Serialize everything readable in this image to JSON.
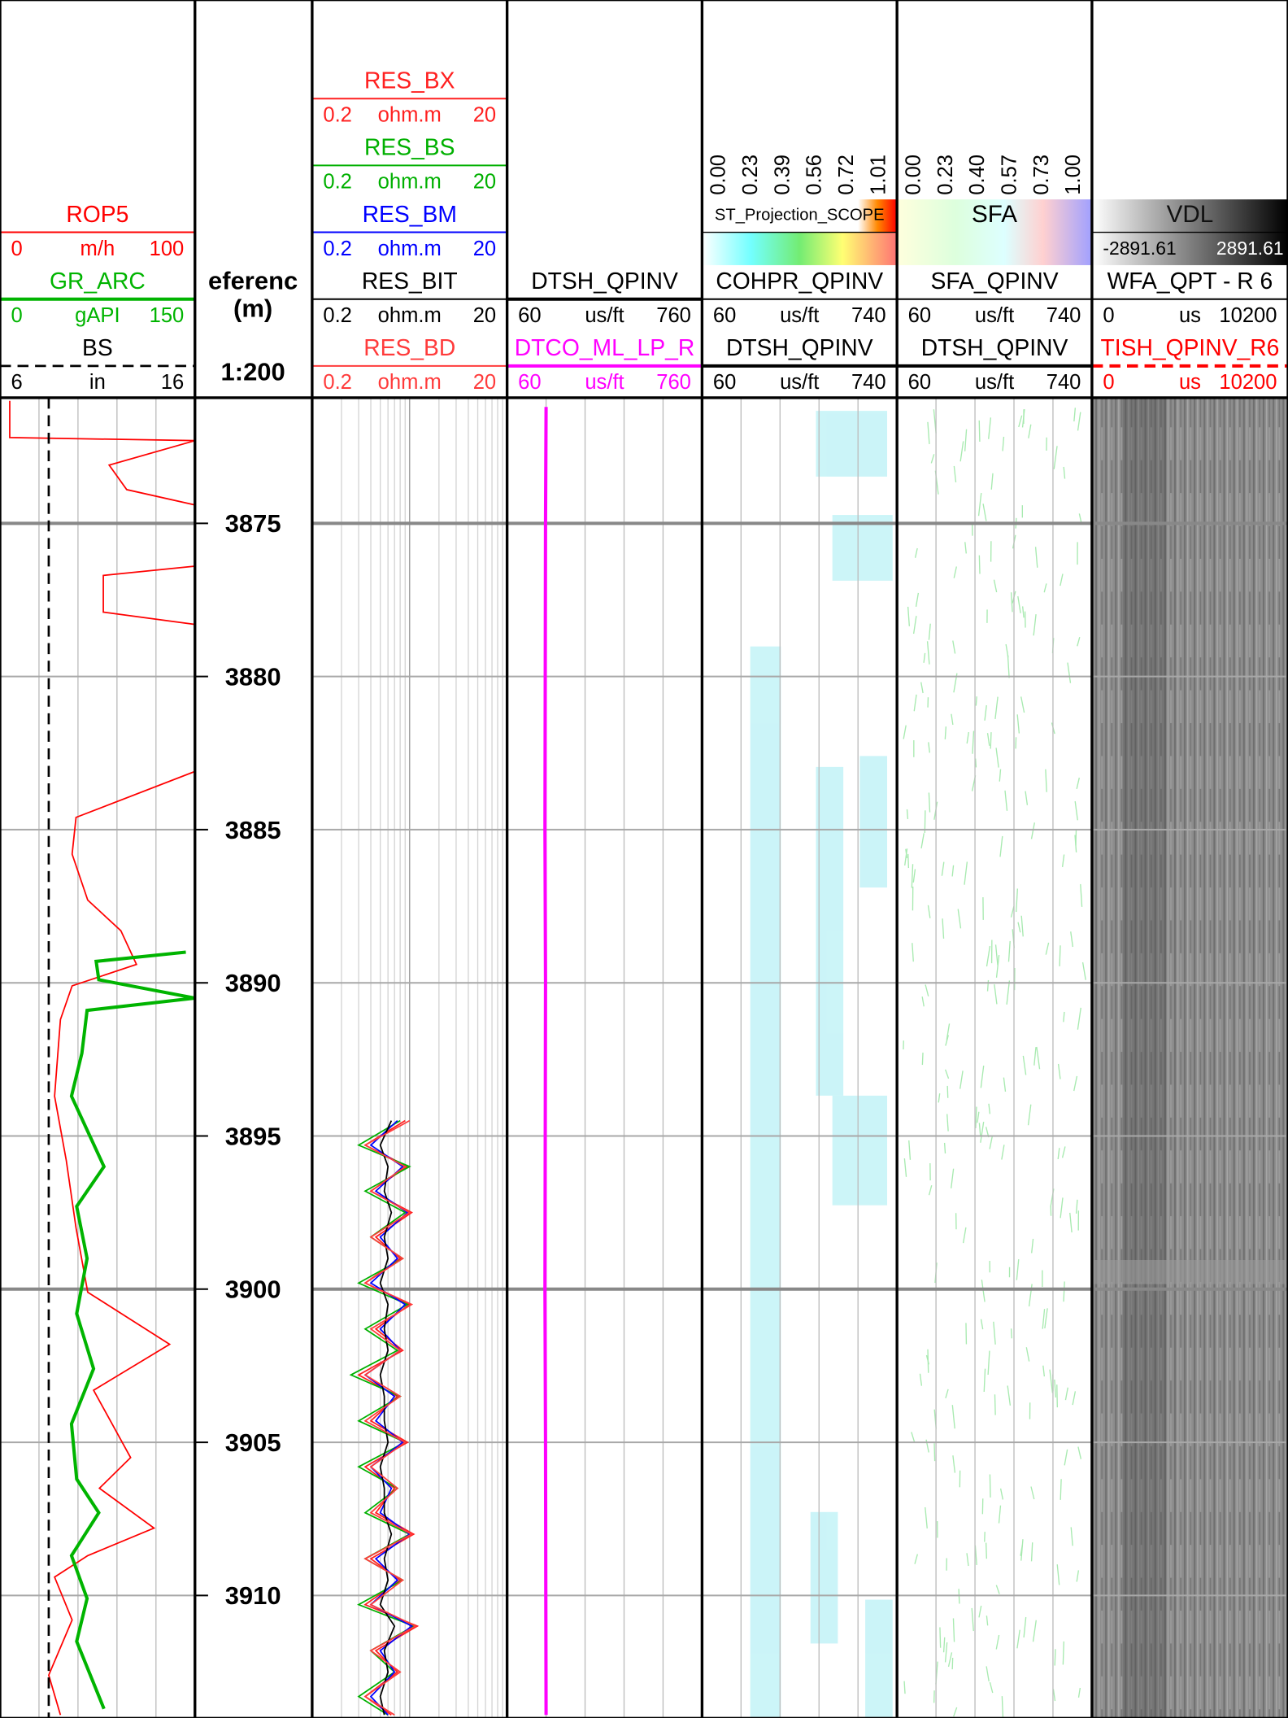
{
  "depth_track": {
    "title": "eferenc",
    "unit": "(m)",
    "scale": "1:200",
    "range": [
      3870.9,
      3914.0
    ],
    "ticks": [
      3875,
      3880,
      3885,
      3890,
      3895,
      3900,
      3905,
      3910
    ]
  },
  "tracks": [
    {
      "curves": [
        {
          "name": "ROP5",
          "color": "#ff0000",
          "min": 0,
          "unit": "m/h",
          "max": 100,
          "depth": [
            3871.0,
            3872.2,
            3872.3,
            3873.1,
            3873.9,
            3874.4,
            3875.5,
            3876.4,
            3876.7,
            3877.9,
            3878.3,
            3879.0,
            3881.0,
            3883.1,
            3884.6,
            3885.8,
            3887.3,
            3888.3,
            3889.4,
            3890.1,
            3891.2,
            3893.7,
            3895.8,
            3898.0,
            3900.1,
            3901.8,
            3903.3,
            3905.5,
            3906.5,
            3907.8,
            3908.7,
            3909.4,
            3910.8,
            3912.6,
            3913.9
          ],
          "values": [
            5,
            5,
            100,
            56,
            65,
            100,
            null,
            100,
            53,
            53,
            100,
            100,
            null,
            100,
            39,
            37,
            45,
            62,
            70,
            37,
            31,
            28,
            34,
            39,
            45,
            87,
            48,
            67,
            51,
            79,
            45,
            28,
            37,
            25,
            31
          ]
        },
        {
          "name": "GR_ARC",
          "color": "#00b400",
          "min": 0,
          "unit": "gAPI",
          "max": 150,
          "width": 3,
          "depth": [
            3889.0,
            3889.3,
            3889.9,
            3890.5,
            3890.9,
            3892.3,
            3893.7,
            3896.0,
            3897.3,
            3899.0,
            3900.8,
            3902.6,
            3904.4,
            3906.2,
            3907.3,
            3908.7,
            3910.1,
            3911.5,
            3913.7
          ],
          "values": [
            143,
            74,
            76,
            150,
            67,
            63,
            55,
            80,
            59,
            67,
            59,
            72,
            55,
            59,
            76,
            55,
            67,
            59,
            80
          ]
        },
        {
          "name": "BS",
          "color": "#000000",
          "min": 6,
          "unit": "in",
          "max": 16,
          "dashed": true,
          "width": 2,
          "depth": [
            3870.9,
            3914.0
          ],
          "values": [
            8.5,
            8.5
          ]
        }
      ]
    },
    {
      "log": true,
      "curves": [
        {
          "name": "RES_BX",
          "color": "#ff2020",
          "min": 0.2,
          "unit": "ohm.m",
          "max": 20,
          "depth": [
            3894.5,
            3895.3,
            3896.0,
            3896.8,
            3897.5,
            3898.3,
            3899.0,
            3899.8,
            3900.5,
            3901.3,
            3902.0,
            3902.8,
            3903.5,
            3904.3,
            3905.0,
            3905.8,
            3906.5,
            3907.3,
            3908.0,
            3908.8,
            3909.5,
            3910.3,
            3911.0,
            3911.8,
            3912.5,
            3913.3,
            3913.9
          ],
          "values": [
            1.8,
            0.7,
            1.9,
            0.8,
            2.1,
            0.9,
            1.6,
            0.7,
            2.0,
            0.9,
            1.7,
            0.6,
            1.5,
            0.8,
            1.9,
            0.7,
            1.4,
            0.9,
            2.2,
            0.8,
            1.6,
            0.7,
            2.4,
            0.9,
            1.5,
            0.7,
            1.3
          ]
        },
        {
          "name": "RES_BS",
          "color": "#00b000",
          "min": 0.2,
          "unit": "ohm.m",
          "max": 20,
          "depth": [
            3894.5,
            3895.3,
            3896.0,
            3896.8,
            3897.5,
            3898.3,
            3899.0,
            3899.8,
            3900.5,
            3901.3,
            3902.0,
            3902.8,
            3903.5,
            3904.3,
            3905.0,
            3905.8,
            3906.5,
            3907.3,
            3908.0,
            3908.8,
            3909.5,
            3910.3,
            3911.0,
            3911.8,
            3912.5,
            3913.3,
            3913.9
          ],
          "values": [
            1.6,
            0.6,
            2.0,
            0.7,
            1.8,
            0.8,
            1.7,
            0.6,
            1.9,
            0.7,
            1.5,
            0.5,
            1.6,
            0.6,
            1.8,
            0.6,
            1.5,
            0.7,
            2.0,
            0.7,
            1.7,
            0.6,
            2.2,
            0.8,
            1.4,
            0.6,
            1.2
          ]
        },
        {
          "name": "RES_BM",
          "color": "#0000ff",
          "min": 0.2,
          "unit": "ohm.m",
          "max": 20,
          "depth": [
            3894.5,
            3895.3,
            3896.0,
            3896.8,
            3897.5,
            3898.3,
            3899.0,
            3899.8,
            3900.5,
            3901.3,
            3902.0,
            3902.8,
            3903.5,
            3904.3,
            3905.0,
            3905.8,
            3906.5,
            3907.3,
            3908.0,
            3908.8,
            3909.5,
            3910.3,
            3911.0,
            3911.8,
            3912.5,
            3913.3,
            3913.9
          ],
          "values": [
            1.5,
            0.8,
            1.7,
            0.9,
            1.9,
            1.0,
            1.5,
            0.8,
            1.8,
            1.0,
            1.6,
            0.7,
            1.4,
            0.9,
            1.7,
            0.8,
            1.3,
            1.0,
            2.0,
            0.9,
            1.5,
            0.8,
            2.1,
            1.0,
            1.4,
            0.8,
            1.2
          ]
        },
        {
          "name": "RES_BIT",
          "color": "#000000",
          "min": 0.2,
          "unit": "ohm.m",
          "max": 20,
          "depth": [
            3894.5,
            3895.3,
            3896.0,
            3896.8,
            3897.5,
            3898.3,
            3899.0,
            3899.8,
            3900.5,
            3901.3,
            3902.0,
            3902.8,
            3903.5,
            3904.3,
            3905.0,
            3905.8,
            3906.5,
            3907.3,
            3908.0,
            3908.8,
            3909.5,
            3910.3,
            3911.0,
            3911.8,
            3912.5,
            3913.3,
            3913.9
          ],
          "values": [
            1.3,
            1.0,
            1.2,
            1.1,
            1.3,
            1.1,
            1.2,
            1.0,
            1.2,
            1.1,
            1.2,
            1.0,
            1.1,
            1.1,
            1.2,
            1.0,
            1.1,
            1.1,
            1.3,
            1.1,
            1.2,
            1.0,
            1.4,
            1.1,
            1.2,
            1.0,
            1.1
          ]
        },
        {
          "name": "RES_BD",
          "color": "#ff3b3b",
          "min": 0.2,
          "unit": "ohm.m",
          "max": 20,
          "depth": [
            3894.5,
            3895.3,
            3896.0,
            3896.8,
            3897.5,
            3898.3,
            3899.0,
            3899.8,
            3900.5,
            3901.3,
            3902.0,
            3902.8,
            3903.5,
            3904.3,
            3905.0,
            3905.8,
            3906.5,
            3907.3,
            3908.0,
            3908.8,
            3909.5,
            3910.3,
            3911.0,
            3911.8,
            3912.5,
            3913.3,
            3913.9
          ],
          "values": [
            2.0,
            0.7,
            1.8,
            0.8,
            2.0,
            0.8,
            1.7,
            0.7,
            2.1,
            0.8,
            1.6,
            0.7,
            1.6,
            0.7,
            1.8,
            0.8,
            1.5,
            0.8,
            2.1,
            0.7,
            1.7,
            0.8,
            2.3,
            0.8,
            1.6,
            0.7,
            1.4
          ]
        }
      ]
    },
    {
      "curves": [
        {
          "name": "DTSH_QPINV",
          "color": "#000000",
          "min": 60,
          "unit": "us/ft",
          "max": 760,
          "width": 3
        },
        {
          "name": "DTCO_ML_LP_R",
          "color": "#ff00ff",
          "min": 60,
          "unit": "us/ft",
          "max": 760,
          "width": 3,
          "depth": [
            3871.2,
            3875,
            3880,
            3885,
            3890,
            3895,
            3900,
            3905,
            3910,
            3913.9
          ],
          "values": [
            200,
            198,
            197,
            196,
            198,
            197,
            196,
            198,
            199,
            200
          ]
        }
      ]
    },
    {
      "colorbar": {
        "title": "ST_Projection_SCOPE",
        "ticks": [
          "0.00",
          "0.23",
          "0.39",
          "0.56",
          "0.72",
          "1.01"
        ]
      },
      "curves": [
        {
          "name": "COHPR_QPINV",
          "color": "#000000",
          "min": 60,
          "unit": "us/ft",
          "max": 740
        },
        {
          "name": "DTSH_QPINV",
          "color": "#000000",
          "min": 60,
          "unit": "us/ft",
          "max": 740,
          "width": 3
        }
      ]
    },
    {
      "colorbar": {
        "title": "SFA",
        "ticks": [
          "0.00",
          "0.23",
          "0.40",
          "0.57",
          "0.73",
          "1.00"
        ]
      },
      "curves": [
        {
          "name": "SFA_QPINV",
          "color": "#000000",
          "min": 60,
          "unit": "us/ft",
          "max": 740
        },
        {
          "name": "DTSH_QPINV",
          "color": "#000000",
          "min": 60,
          "unit": "us/ft",
          "max": 740,
          "width": 3
        }
      ]
    },
    {
      "colorbar": {
        "title": "VDL",
        "min": -2891.61,
        "max": 2891.61
      },
      "curves": [
        {
          "name": "WFA_QPT - R 6",
          "color": "#000000",
          "min": 0,
          "unit": "us",
          "max": 10200
        },
        {
          "name": "TISH_QPINV_R6",
          "color": "#ff0000",
          "min": 0,
          "unit": "us",
          "max": 10200,
          "dashed": true,
          "width": 3
        }
      ]
    }
  ]
}
